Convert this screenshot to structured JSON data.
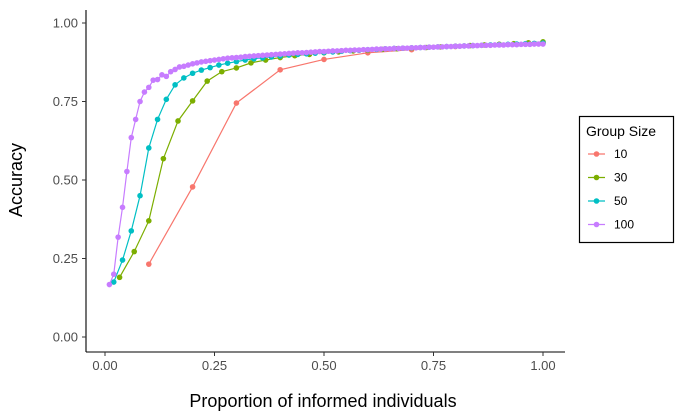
{
  "chart_data": {
    "type": "line",
    "xlabel": "Proportion of informed individuals",
    "ylabel": "Accuracy",
    "xlim": [
      0,
      1
    ],
    "ylim": [
      0,
      1
    ],
    "x_ticks": [
      "0.00",
      "0.25",
      "0.50",
      "0.75",
      "1.00"
    ],
    "y_ticks": [
      "0.00",
      "0.25",
      "0.50",
      "0.75",
      "1.00"
    ],
    "grid": false,
    "legend": {
      "title": "Group Size",
      "position": "right"
    },
    "series": [
      {
        "name": "10",
        "color": "#F8766D",
        "x": [
          0.1,
          0.2,
          0.3,
          0.4,
          0.5,
          0.6,
          0.7,
          0.8,
          0.9,
          1.0
        ],
        "y": [
          0.232,
          0.478,
          0.745,
          0.851,
          0.884,
          0.905,
          0.915,
          0.925,
          0.932,
          0.937
        ]
      },
      {
        "name": "30",
        "color": "#7CAE00",
        "x": [
          0.0333,
          0.0667,
          0.1,
          0.1333,
          0.1667,
          0.2,
          0.2333,
          0.2667,
          0.3,
          0.3333,
          0.3667,
          0.4,
          0.4333,
          0.4667,
          0.5,
          0.5333,
          0.5667,
          0.6,
          0.6333,
          0.6667,
          0.7,
          0.7333,
          0.7667,
          0.8,
          0.8333,
          0.8667,
          0.9,
          0.9333,
          0.9667,
          1.0
        ],
        "y": [
          0.19,
          0.272,
          0.37,
          0.568,
          0.688,
          0.752,
          0.815,
          0.845,
          0.857,
          0.873,
          0.882,
          0.89,
          0.896,
          0.9,
          0.905,
          0.908,
          0.911,
          0.913,
          0.916,
          0.918,
          0.92,
          0.922,
          0.924,
          0.926,
          0.928,
          0.93,
          0.932,
          0.934,
          0.937,
          0.94
        ]
      },
      {
        "name": "50",
        "color": "#00BFC4",
        "x": [
          0.02,
          0.04,
          0.06,
          0.08,
          0.1,
          0.12,
          0.14,
          0.16,
          0.18,
          0.2,
          0.22,
          0.24,
          0.26,
          0.28,
          0.3,
          0.32,
          0.34,
          0.36,
          0.38,
          0.4,
          0.42,
          0.44,
          0.46,
          0.48,
          0.5,
          0.52,
          0.54,
          0.56,
          0.58,
          0.6,
          0.62,
          0.64,
          0.66,
          0.68,
          0.7,
          0.72,
          0.74,
          0.76,
          0.78,
          0.8,
          0.82,
          0.84,
          0.86,
          0.88,
          0.9,
          0.92,
          0.94,
          0.96,
          0.98,
          1.0
        ],
        "y": [
          0.175,
          0.245,
          0.338,
          0.45,
          0.602,
          0.693,
          0.757,
          0.803,
          0.825,
          0.84,
          0.85,
          0.858,
          0.866,
          0.872,
          0.877,
          0.882,
          0.886,
          0.889,
          0.892,
          0.895,
          0.898,
          0.9,
          0.902,
          0.904,
          0.906,
          0.908,
          0.91,
          0.912,
          0.913,
          0.915,
          0.916,
          0.918,
          0.919,
          0.92,
          0.921,
          0.922,
          0.923,
          0.924,
          0.925,
          0.926,
          0.927,
          0.928,
          0.929,
          0.93,
          0.931,
          0.932,
          0.933,
          0.934,
          0.935,
          0.936
        ]
      },
      {
        "name": "100",
        "color": "#C77CFF",
        "x": [
          0.01,
          0.02,
          0.03,
          0.04,
          0.05,
          0.06,
          0.07,
          0.08,
          0.09,
          0.1,
          0.11,
          0.12,
          0.13,
          0.14,
          0.15,
          0.16,
          0.17,
          0.18,
          0.19,
          0.2,
          0.21,
          0.22,
          0.23,
          0.24,
          0.25,
          0.26,
          0.27,
          0.28,
          0.29,
          0.3,
          0.31,
          0.32,
          0.33,
          0.34,
          0.35,
          0.36,
          0.37,
          0.38,
          0.39,
          0.4,
          0.41,
          0.42,
          0.43,
          0.44,
          0.45,
          0.46,
          0.47,
          0.48,
          0.49,
          0.5,
          0.51,
          0.52,
          0.53,
          0.54,
          0.55,
          0.56,
          0.57,
          0.58,
          0.59,
          0.6,
          0.61,
          0.62,
          0.63,
          0.64,
          0.65,
          0.66,
          0.67,
          0.68,
          0.69,
          0.7,
          0.71,
          0.72,
          0.73,
          0.74,
          0.75,
          0.76,
          0.77,
          0.78,
          0.79,
          0.8,
          0.81,
          0.82,
          0.83,
          0.84,
          0.85,
          0.86,
          0.87,
          0.88,
          0.89,
          0.9,
          0.91,
          0.92,
          0.93,
          0.94,
          0.95,
          0.96,
          0.97,
          0.98,
          0.99,
          1.0
        ],
        "y": [
          0.167,
          0.2,
          0.318,
          0.413,
          0.527,
          0.635,
          0.693,
          0.75,
          0.78,
          0.795,
          0.818,
          0.82,
          0.835,
          0.83,
          0.845,
          0.852,
          0.86,
          0.862,
          0.866,
          0.87,
          0.873,
          0.876,
          0.878,
          0.88,
          0.882,
          0.884,
          0.886,
          0.888,
          0.889,
          0.89,
          0.891,
          0.893,
          0.894,
          0.895,
          0.896,
          0.897,
          0.898,
          0.899,
          0.9,
          0.901,
          0.902,
          0.903,
          0.904,
          0.905,
          0.905,
          0.906,
          0.907,
          0.908,
          0.909,
          0.909,
          0.91,
          0.911,
          0.911,
          0.912,
          0.913,
          0.913,
          0.914,
          0.914,
          0.915,
          0.915,
          0.916,
          0.917,
          0.917,
          0.918,
          0.918,
          0.919,
          0.919,
          0.92,
          0.92,
          0.921,
          0.921,
          0.922,
          0.922,
          0.923,
          0.923,
          0.924,
          0.924,
          0.925,
          0.925,
          0.926,
          0.926,
          0.927,
          0.927,
          0.928,
          0.928,
          0.929,
          0.929,
          0.929,
          0.93,
          0.93,
          0.93,
          0.931,
          0.931,
          0.931,
          0.932,
          0.932,
          0.932,
          0.933,
          0.933,
          0.933
        ]
      }
    ]
  }
}
